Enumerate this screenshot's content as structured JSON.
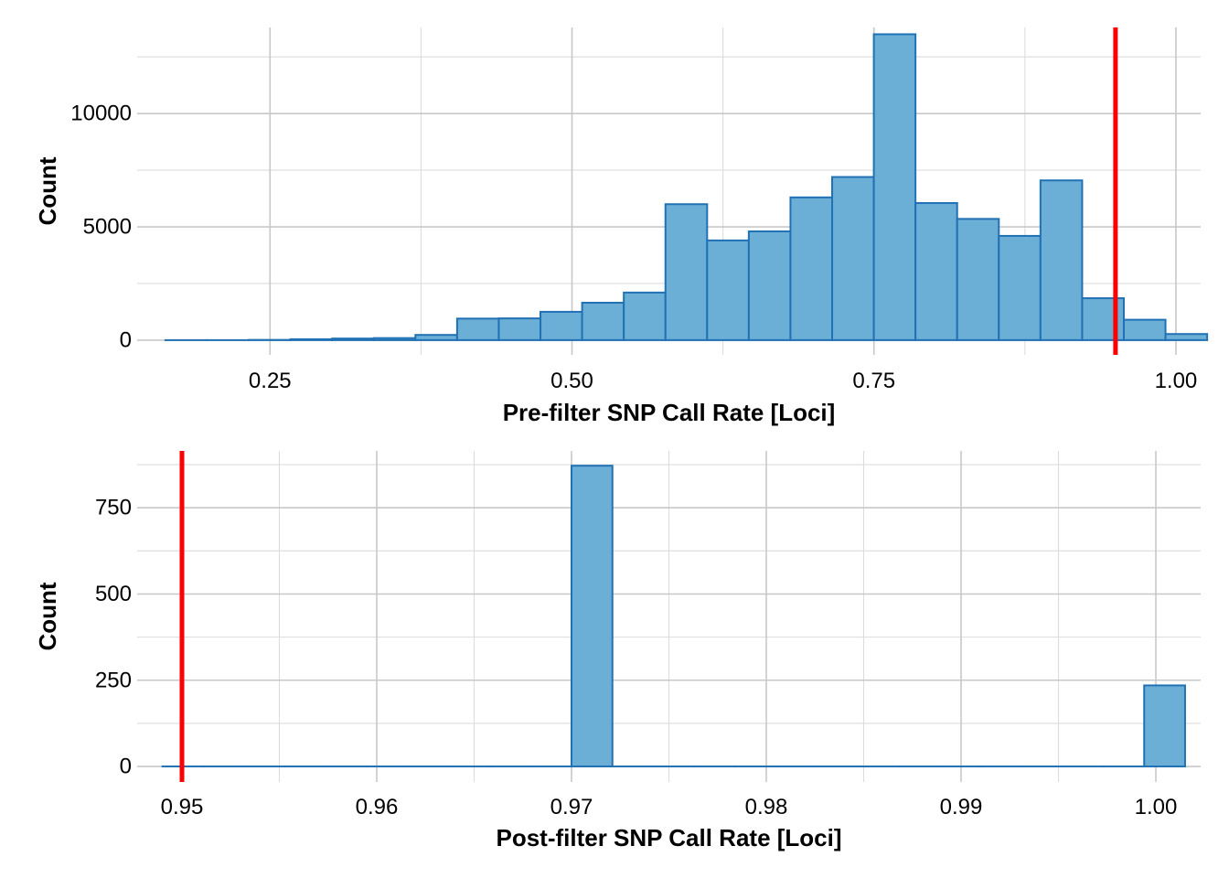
{
  "chart_data": [
    {
      "type": "bar",
      "subtype": "histogram",
      "xlabel": "Pre-filter SNP Call Rate [Loci]",
      "ylabel": "Count",
      "xlim": [
        0.14,
        1.0205
      ],
      "ylim": [
        -650,
        13800
      ],
      "x_ticks": [
        0.25,
        0.5,
        0.75,
        1.0
      ],
      "x_tick_labels": [
        "0.25",
        "0.50",
        "0.75",
        "1.00"
      ],
      "x_minor_ticks": [
        0.375,
        0.625,
        0.875
      ],
      "y_ticks": [
        0,
        5000,
        10000
      ],
      "y_tick_labels": [
        "0",
        "5000",
        "10000"
      ],
      "y_minor_ticks": [
        2500,
        7500,
        12500
      ],
      "bin_width": 0.0345,
      "bins": [
        {
          "x0": 0.1634,
          "x1": 0.1979,
          "count": 0
        },
        {
          "x0": 0.1979,
          "x1": 0.2324,
          "count": 0
        },
        {
          "x0": 0.2324,
          "x1": 0.2669,
          "count": 10
        },
        {
          "x0": 0.2669,
          "x1": 0.3014,
          "count": 40
        },
        {
          "x0": 0.3014,
          "x1": 0.3359,
          "count": 70
        },
        {
          "x0": 0.3359,
          "x1": 0.3704,
          "count": 90
        },
        {
          "x0": 0.3704,
          "x1": 0.4049,
          "count": 230
        },
        {
          "x0": 0.4049,
          "x1": 0.4394,
          "count": 950
        },
        {
          "x0": 0.4394,
          "x1": 0.4739,
          "count": 960
        },
        {
          "x0": 0.4739,
          "x1": 0.5084,
          "count": 1250
        },
        {
          "x0": 0.5084,
          "x1": 0.5429,
          "count": 1650
        },
        {
          "x0": 0.5429,
          "x1": 0.5774,
          "count": 2100
        },
        {
          "x0": 0.5774,
          "x1": 0.6119,
          "count": 6000
        },
        {
          "x0": 0.6119,
          "x1": 0.6464,
          "count": 4400
        },
        {
          "x0": 0.6464,
          "x1": 0.6809,
          "count": 4800
        },
        {
          "x0": 0.6809,
          "x1": 0.7154,
          "count": 6300
        },
        {
          "x0": 0.7154,
          "x1": 0.7499,
          "count": 7200
        },
        {
          "x0": 0.7499,
          "x1": 0.7844,
          "count": 13500
        },
        {
          "x0": 0.7844,
          "x1": 0.8189,
          "count": 6050
        },
        {
          "x0": 0.8189,
          "x1": 0.8534,
          "count": 5350
        },
        {
          "x0": 0.8534,
          "x1": 0.8879,
          "count": 4600
        },
        {
          "x0": 0.8879,
          "x1": 0.9224,
          "count": 7050
        },
        {
          "x0": 0.9224,
          "x1": 0.9569,
          "count": 1850
        },
        {
          "x0": 0.9569,
          "x1": 0.9914,
          "count": 900
        },
        {
          "x0": 0.9914,
          "x1": 1.0259,
          "count": 270
        }
      ],
      "threshold": 0.95,
      "colors": {
        "fill": "#6baed6",
        "outline": "#2171b5",
        "threshold_line": "#ff0000"
      }
    },
    {
      "type": "bar",
      "subtype": "histogram",
      "xlabel": "Post-filter SNP Call Rate [Loci]",
      "ylabel": "Count",
      "xlim": [
        0.9477,
        1.0023
      ],
      "ylim": [
        -45,
        915
      ],
      "x_ticks": [
        0.95,
        0.96,
        0.97,
        0.98,
        0.99,
        1.0
      ],
      "x_tick_labels": [
        "0.95",
        "0.96",
        "0.97",
        "0.98",
        "0.99",
        "1.00"
      ],
      "x_minor_ticks": [
        0.955,
        0.965,
        0.975,
        0.985,
        0.995
      ],
      "y_ticks": [
        0,
        250,
        500,
        750
      ],
      "y_tick_labels": [
        "0",
        "250",
        "500",
        "750"
      ],
      "y_minor_ticks": [
        125,
        375,
        625,
        875
      ],
      "bin_width": 0.0021,
      "bins": [
        {
          "x0": 0.949,
          "x1": 0.9511,
          "count": 0
        },
        {
          "x0": 0.9511,
          "x1": 0.9532,
          "count": 0
        },
        {
          "x0": 0.9532,
          "x1": 0.9553,
          "count": 0
        },
        {
          "x0": 0.9553,
          "x1": 0.9574,
          "count": 0
        },
        {
          "x0": 0.9574,
          "x1": 0.9595,
          "count": 0
        },
        {
          "x0": 0.9595,
          "x1": 0.9616,
          "count": 0
        },
        {
          "x0": 0.9616,
          "x1": 0.9637,
          "count": 0
        },
        {
          "x0": 0.9637,
          "x1": 0.9658,
          "count": 0
        },
        {
          "x0": 0.9658,
          "x1": 0.9679,
          "count": 0
        },
        {
          "x0": 0.9679,
          "x1": 0.97,
          "count": 0
        },
        {
          "x0": 0.97,
          "x1": 0.9721,
          "count": 872
        },
        {
          "x0": 0.9721,
          "x1": 0.9742,
          "count": 0
        },
        {
          "x0": 0.9742,
          "x1": 0.9763,
          "count": 0
        },
        {
          "x0": 0.9763,
          "x1": 0.9784,
          "count": 0
        },
        {
          "x0": 0.9784,
          "x1": 0.9805,
          "count": 0
        },
        {
          "x0": 0.9805,
          "x1": 0.9826,
          "count": 0
        },
        {
          "x0": 0.9826,
          "x1": 0.9847,
          "count": 0
        },
        {
          "x0": 0.9847,
          "x1": 0.9868,
          "count": 0
        },
        {
          "x0": 0.9868,
          "x1": 0.9889,
          "count": 0
        },
        {
          "x0": 0.9889,
          "x1": 0.991,
          "count": 0
        },
        {
          "x0": 0.991,
          "x1": 0.9931,
          "count": 0
        },
        {
          "x0": 0.9931,
          "x1": 0.9952,
          "count": 0
        },
        {
          "x0": 0.9952,
          "x1": 0.9973,
          "count": 0
        },
        {
          "x0": 0.9973,
          "x1": 0.9994,
          "count": 0
        },
        {
          "x0": 0.9994,
          "x1": 1.0015,
          "count": 235
        }
      ],
      "threshold": 0.95,
      "colors": {
        "fill": "#6baed6",
        "outline": "#2171b5",
        "threshold_line": "#ff0000"
      }
    }
  ]
}
